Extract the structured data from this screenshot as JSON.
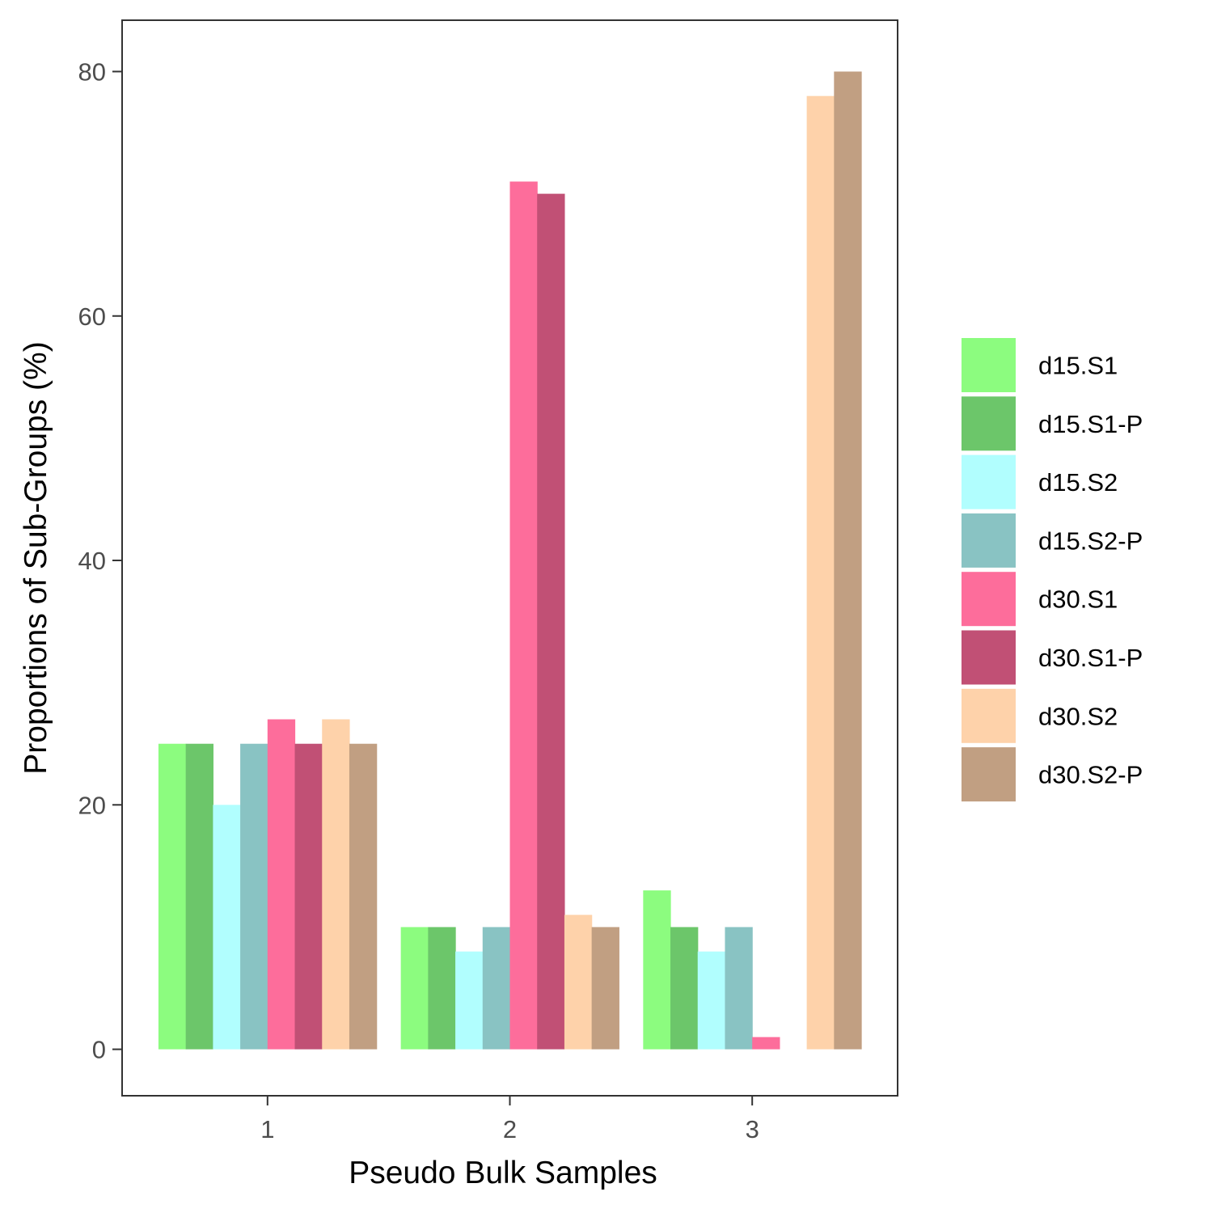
{
  "chart_data": {
    "type": "bar",
    "title": "",
    "xlabel": "Pseudo Bulk Samples",
    "ylabel": "Proportions of Sub-Groups (%)",
    "categories": [
      "1",
      "2",
      "3"
    ],
    "ylim": [
      -3.8,
      84.2
    ],
    "yticks": [
      "0",
      "20",
      "40",
      "60",
      "80"
    ],
    "grid": false,
    "legend_position": "right",
    "series": [
      {
        "name": "d15.S1",
        "color": "#8cfc7f",
        "values": [
          25,
          10,
          13
        ]
      },
      {
        "name": "d15.S1-P",
        "color": "#6cc66a",
        "values": [
          25,
          10,
          10
        ]
      },
      {
        "name": "d15.S2",
        "color": "#b1fefe",
        "values": [
          20,
          8,
          8
        ]
      },
      {
        "name": "d15.S2-P",
        "color": "#89c3c3",
        "values": [
          25,
          10,
          10
        ]
      },
      {
        "name": "d30.S1",
        "color": "#fd6d9b",
        "values": [
          27,
          71,
          1
        ]
      },
      {
        "name": "d30.S1-P",
        "color": "#c15075",
        "values": [
          25,
          70,
          0
        ]
      },
      {
        "name": "d30.S2",
        "color": "#fed2aa",
        "values": [
          27,
          11,
          78
        ]
      },
      {
        "name": "d30.S2-P",
        "color": "#c19f82",
        "values": [
          25,
          10,
          80
        ]
      }
    ]
  }
}
